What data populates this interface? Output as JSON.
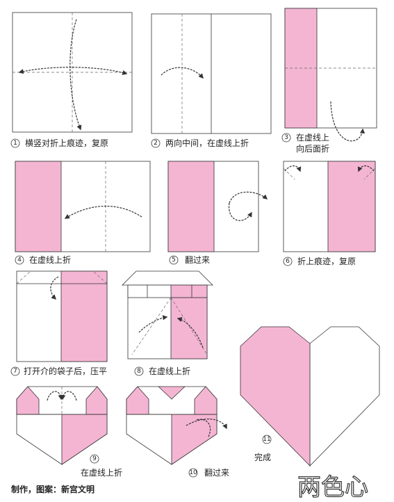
{
  "steps": [
    {
      "num": "1",
      "caption": "横竖对折上痕迹，复原"
    },
    {
      "num": "2",
      "caption": "两向中间，在虚线上折"
    },
    {
      "num": "3",
      "caption": "在虚线上",
      "caption2": "向后面折"
    },
    {
      "num": "4",
      "caption": "在虚线上折"
    },
    {
      "num": "5",
      "caption": "翻过来"
    },
    {
      "num": "6",
      "caption": "折上痕迹，复原"
    },
    {
      "num": "7",
      "caption": "打开介的袋子后，压平"
    },
    {
      "num": "8",
      "caption": "在虚线上折"
    },
    {
      "num": "9",
      "caption": "在虚线上折"
    },
    {
      "num": "10",
      "caption": "翻过来"
    },
    {
      "num": "11",
      "caption": "完成"
    }
  ],
  "credit": "制作，图案：新宫文明",
  "title": "两色心",
  "colors": {
    "pink": "#f4b5d3",
    "line": "#333333",
    "paper": "#ffffff"
  }
}
